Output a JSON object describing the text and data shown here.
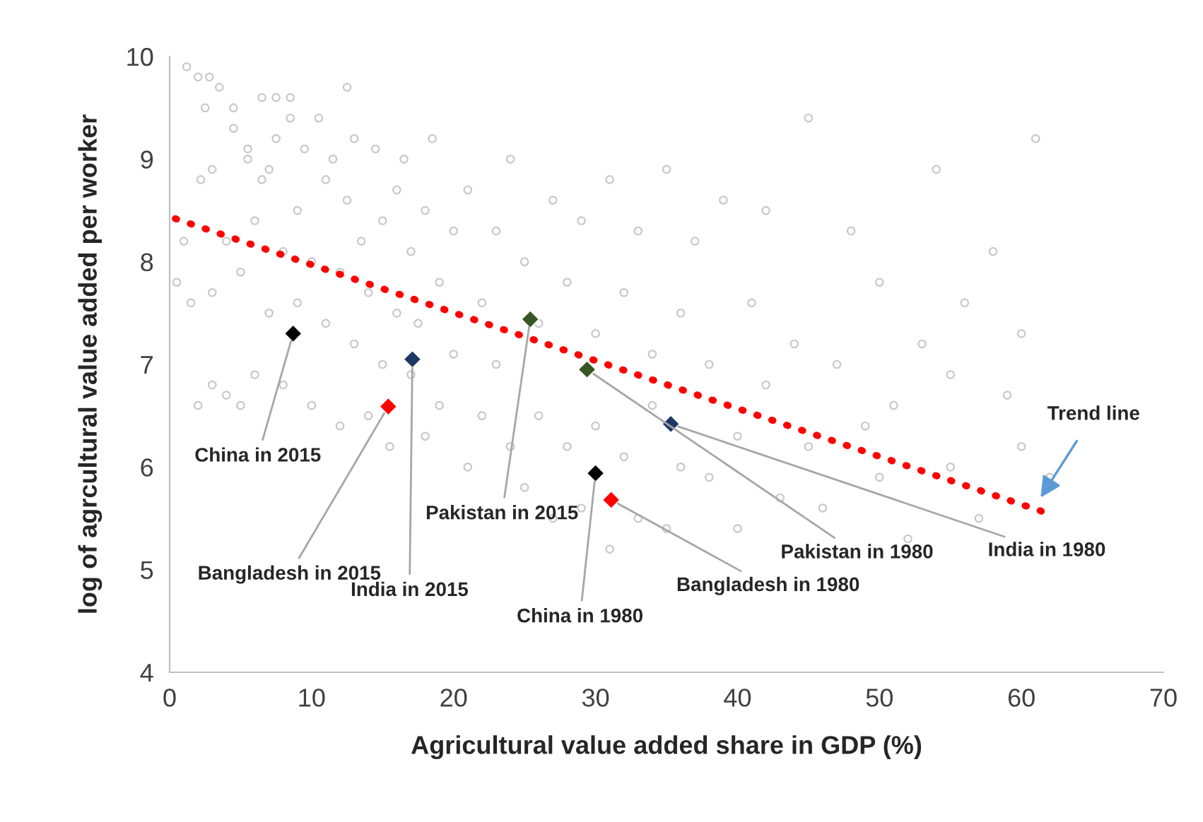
{
  "chart_data": {
    "type": "scatter",
    "xlabel": "Agricultural value added share in GDP (%)",
    "ylabel": "log of agrcultural value added per worker",
    "xlim": [
      0,
      70
    ],
    "xticks": [
      0,
      10,
      20,
      30,
      40,
      50,
      60,
      70
    ],
    "ylim": [
      4,
      10
    ],
    "yticks": [
      4,
      5,
      6,
      7,
      8,
      9,
      10
    ],
    "grid": false,
    "legend": false,
    "series": [
      {
        "type": "scatter",
        "marker": "circle",
        "color": "#c8c8c8",
        "x": [
          0.5,
          1,
          1.5,
          2,
          2.2,
          2.5,
          3,
          3,
          3.5,
          4,
          4,
          4.5,
          5,
          5,
          5.5,
          6,
          6,
          6.5,
          7,
          7,
          7.5,
          8,
          8,
          8.5,
          9,
          9,
          9.5,
          10,
          10,
          10.5,
          11,
          11,
          11.5,
          12,
          12,
          12.5,
          13,
          13,
          13.5,
          14,
          14,
          14.5,
          15,
          15,
          15.5,
          16,
          16,
          16.5,
          17,
          17,
          17.5,
          18,
          18,
          18.5,
          19,
          19,
          20,
          20,
          21,
          21,
          22,
          22,
          23,
          23,
          24,
          24,
          25,
          25,
          26,
          26,
          27,
          27,
          28,
          28,
          29,
          29,
          30,
          30,
          31,
          31,
          32,
          32,
          33,
          33,
          34,
          34,
          35,
          35,
          36,
          36,
          37,
          38,
          38,
          39,
          40,
          40,
          41,
          42,
          42,
          43,
          44,
          45,
          45,
          46,
          47,
          48,
          49,
          50,
          50,
          51,
          52,
          53,
          54,
          55,
          55,
          56,
          57,
          58,
          59,
          60,
          60,
          61,
          62,
          2,
          3,
          1.2,
          4.5,
          6.5,
          8.5,
          12.5,
          2.8,
          5.5,
          7.5
        ],
        "values": [
          7.8,
          8.2,
          7.6,
          9.8,
          8.8,
          9.5,
          6.8,
          8.9,
          9.7,
          8.2,
          6.7,
          9.3,
          7.9,
          6.6,
          9.0,
          8.4,
          6.9,
          9.6,
          7.5,
          8.9,
          9.2,
          8.1,
          6.8,
          9.6,
          7.6,
          8.5,
          9.1,
          8.0,
          6.6,
          9.4,
          7.4,
          8.8,
          9.0,
          7.9,
          6.4,
          8.6,
          7.2,
          9.2,
          8.2,
          7.7,
          6.5,
          9.1,
          8.4,
          7.0,
          6.2,
          8.7,
          7.5,
          9.0,
          8.1,
          6.9,
          7.4,
          8.5,
          6.3,
          9.2,
          7.8,
          6.6,
          8.3,
          7.1,
          8.7,
          6.0,
          7.6,
          6.5,
          8.3,
          7.0,
          9.0,
          6.2,
          8.0,
          5.8,
          7.4,
          6.5,
          8.6,
          5.5,
          7.8,
          6.2,
          8.4,
          5.6,
          7.3,
          6.4,
          8.8,
          5.2,
          7.7,
          6.1,
          8.3,
          5.5,
          7.1,
          6.6,
          8.9,
          5.4,
          7.5,
          6.0,
          8.2,
          5.9,
          7.0,
          8.6,
          6.3,
          5.4,
          7.6,
          6.8,
          8.5,
          5.7,
          7.2,
          6.2,
          9.4,
          5.6,
          7.0,
          8.3,
          6.4,
          5.9,
          7.8,
          6.6,
          5.3,
          7.2,
          8.9,
          6.0,
          6.9,
          7.6,
          5.5,
          8.1,
          6.7,
          7.3,
          6.2,
          9.2,
          5.9,
          6.6,
          7.7,
          9.9,
          9.5,
          8.8,
          9.4,
          9.7,
          9.8,
          9.1,
          9.6
        ]
      },
      {
        "type": "scatter",
        "marker": "diamond",
        "x": [
          8.7,
          17.1,
          15.4,
          25.4,
          29.4,
          35.3,
          30.0,
          31.1
        ],
        "values": [
          7.3,
          7.05,
          6.59,
          7.44,
          6.95,
          6.42,
          5.94,
          5.68
        ],
        "colors": [
          "#000000",
          "#1f3864",
          "#ff0000",
          "#375623",
          "#375623",
          "#1f3864",
          "#000000",
          "#ff0000"
        ]
      },
      {
        "type": "line",
        "line_style": "dotted",
        "color": "#ff0000",
        "x": [
          0.4,
          61.4
        ],
        "values": [
          8.42,
          5.57
        ]
      }
    ],
    "annotations": [
      {
        "text": "China in 2015",
        "x": 8.7,
        "y": 7.3
      },
      {
        "text": "India in 2015",
        "x": 17.1,
        "y": 7.05
      },
      {
        "text": "Bangladesh in 2015",
        "x": 15.4,
        "y": 6.59
      },
      {
        "text": "Pakistan in 2015",
        "x": 25.4,
        "y": 7.44
      },
      {
        "text": "Pakistan in 1980",
        "x": 29.4,
        "y": 6.95
      },
      {
        "text": "India in 1980",
        "x": 35.3,
        "y": 6.42
      },
      {
        "text": "China in 1980",
        "x": 30.0,
        "y": 5.94
      },
      {
        "text": "Bangladesh in 1980",
        "x": 31.1,
        "y": 5.68
      },
      {
        "text": "Trend line",
        "x": 61.2,
        "y": 5.67
      }
    ]
  }
}
